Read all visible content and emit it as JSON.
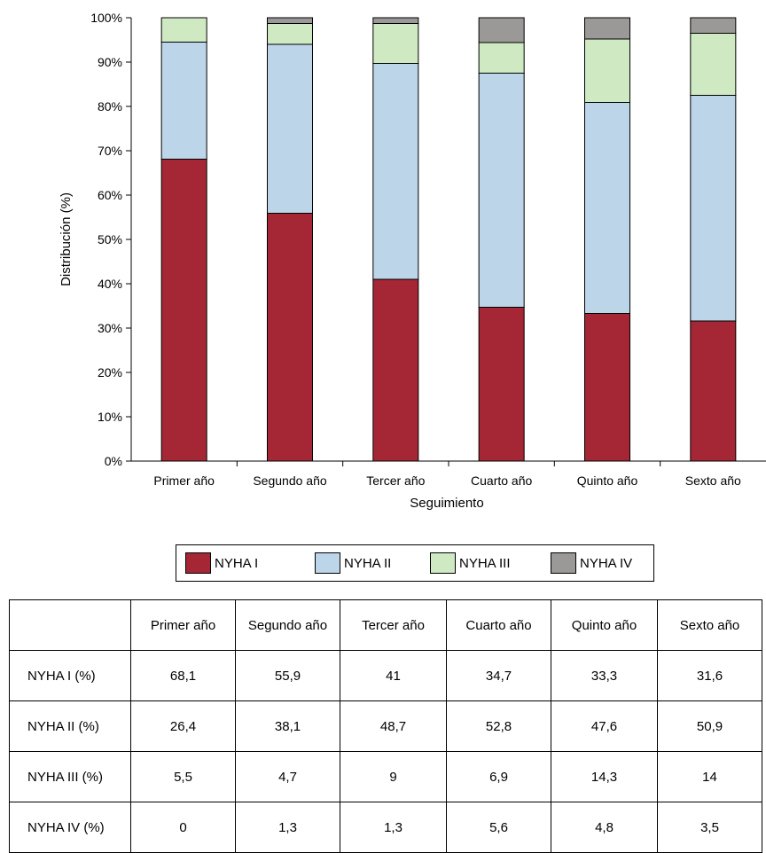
{
  "chart_data": {
    "type": "bar",
    "stacked": true,
    "ylabel": "Distribución (%)",
    "xlabel": "Seguimiento",
    "ylim": [
      0,
      100
    ],
    "yticks": [
      "0%",
      "10%",
      "20%",
      "30%",
      "40%",
      "50%",
      "60%",
      "70%",
      "80%",
      "90%",
      "100%"
    ],
    "categories": [
      "Primer año",
      "Segundo año",
      "Tercer año",
      "Cuarto año",
      "Quinto año",
      "Sexto año"
    ],
    "series": [
      {
        "name": "NYHA I",
        "color": "#a52735",
        "values": [
          68.1,
          55.9,
          41,
          34.7,
          33.3,
          31.6
        ]
      },
      {
        "name": "NYHA II",
        "color": "#bcd5e9",
        "values": [
          26.4,
          38.1,
          48.7,
          52.8,
          47.6,
          50.9
        ]
      },
      {
        "name": "NYHA III",
        "color": "#cfeac2",
        "values": [
          5.5,
          4.7,
          9,
          6.9,
          14.3,
          14
        ]
      },
      {
        "name": "NYHA IV",
        "color": "#9b9998",
        "values": [
          0,
          1.3,
          1.3,
          5.6,
          4.8,
          3.5
        ]
      }
    ],
    "legend_position": "bottom"
  },
  "table": {
    "header": [
      "",
      "Primer año",
      "Segundo año",
      "Tercer año",
      "Cuarto año",
      "Quinto año",
      "Sexto año"
    ],
    "rows": [
      {
        "label": "NYHA I (%)",
        "cells": [
          "68,1",
          "55,9",
          "41",
          "34,7",
          "33,3",
          "31,6"
        ]
      },
      {
        "label": "NYHA II (%)",
        "cells": [
          "26,4",
          "38,1",
          "48,7",
          "52,8",
          "47,6",
          "50,9"
        ]
      },
      {
        "label": "NYHA III (%)",
        "cells": [
          "5,5",
          "4,7",
          "9",
          "6,9",
          "14,3",
          "14"
        ]
      },
      {
        "label": "NYHA IV (%)",
        "cells": [
          "0",
          "1,3",
          "1,3",
          "5,6",
          "4,8",
          "3,5"
        ]
      }
    ]
  }
}
